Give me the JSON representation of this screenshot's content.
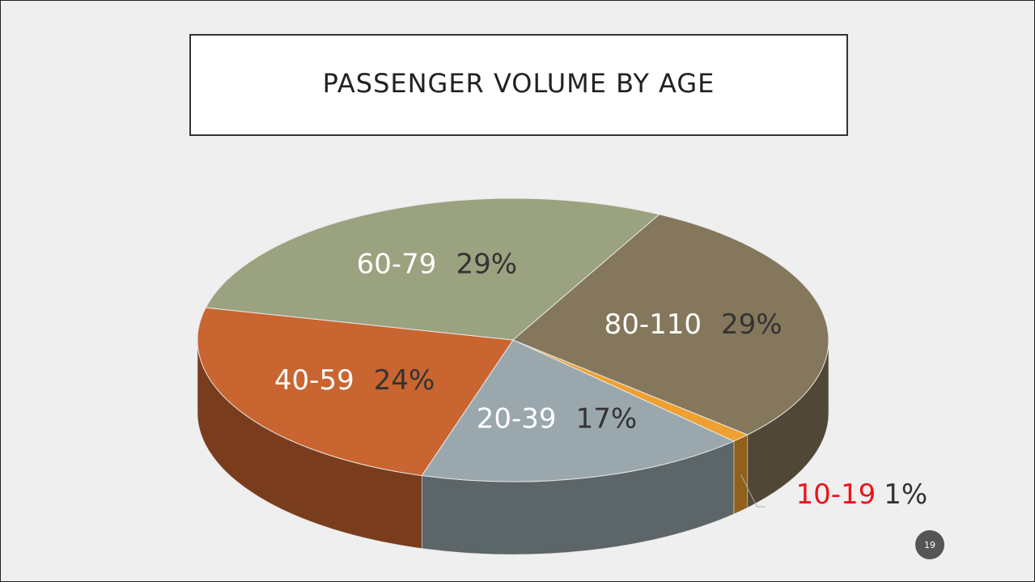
{
  "chart_data": {
    "type": "pie",
    "title": "PASSENGER VOLUME BY AGE",
    "categories": [
      "10-19",
      "20-39",
      "40-59",
      "60-79",
      "80-110"
    ],
    "values": [
      1,
      17,
      24,
      29,
      29
    ],
    "value_labels": [
      "1%",
      "17%",
      "24%",
      "29%",
      "29%"
    ],
    "colors": [
      "#f0a030",
      "#9aa8ae",
      "#c96530",
      "#9aa27f",
      "#85775c"
    ]
  },
  "page_number": "19"
}
